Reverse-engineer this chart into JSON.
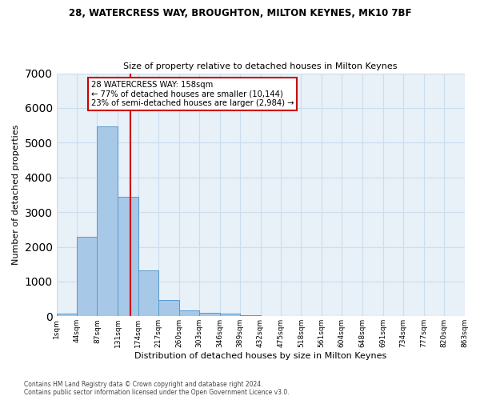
{
  "title1": "28, WATERCRESS WAY, BROUGHTON, MILTON KEYNES, MK10 7BF",
  "title2": "Size of property relative to detached houses in Milton Keynes",
  "xlabel": "Distribution of detached houses by size in Milton Keynes",
  "ylabel": "Number of detached properties",
  "footer": "Contains HM Land Registry data © Crown copyright and database right 2024.\nContains public sector information licensed under the Open Government Licence v3.0.",
  "bin_edges": [
    1,
    44,
    87,
    131,
    174,
    217,
    260,
    303,
    346,
    389,
    432,
    475,
    518,
    561,
    604,
    648,
    691,
    734,
    777,
    820,
    863
  ],
  "bar_heights": [
    75,
    2280,
    5460,
    3440,
    1310,
    470,
    160,
    100,
    65,
    30,
    0,
    0,
    0,
    0,
    0,
    0,
    0,
    0,
    0,
    0
  ],
  "bar_color": "#a8c8e8",
  "bar_edge_color": "#5599cc",
  "grid_color": "#ccddee",
  "background_color": "#e8f0f8",
  "property_size": 158,
  "vline_color": "#cc0000",
  "annotation_line1": "28 WATERCRESS WAY: 158sqm",
  "annotation_line2": "← 77% of detached houses are smaller (10,144)",
  "annotation_line3": "23% of semi-detached houses are larger (2,984) →",
  "annotation_box_color": "#ffffff",
  "annotation_box_edge": "#cc0000",
  "ylim": [
    0,
    7000
  ],
  "tick_labels": [
    "1sqm",
    "44sqm",
    "87sqm",
    "131sqm",
    "174sqm",
    "217sqm",
    "260sqm",
    "303sqm",
    "346sqm",
    "389sqm",
    "432sqm",
    "475sqm",
    "518sqm",
    "561sqm",
    "604sqm",
    "648sqm",
    "691sqm",
    "734sqm",
    "777sqm",
    "820sqm",
    "863sqm"
  ]
}
